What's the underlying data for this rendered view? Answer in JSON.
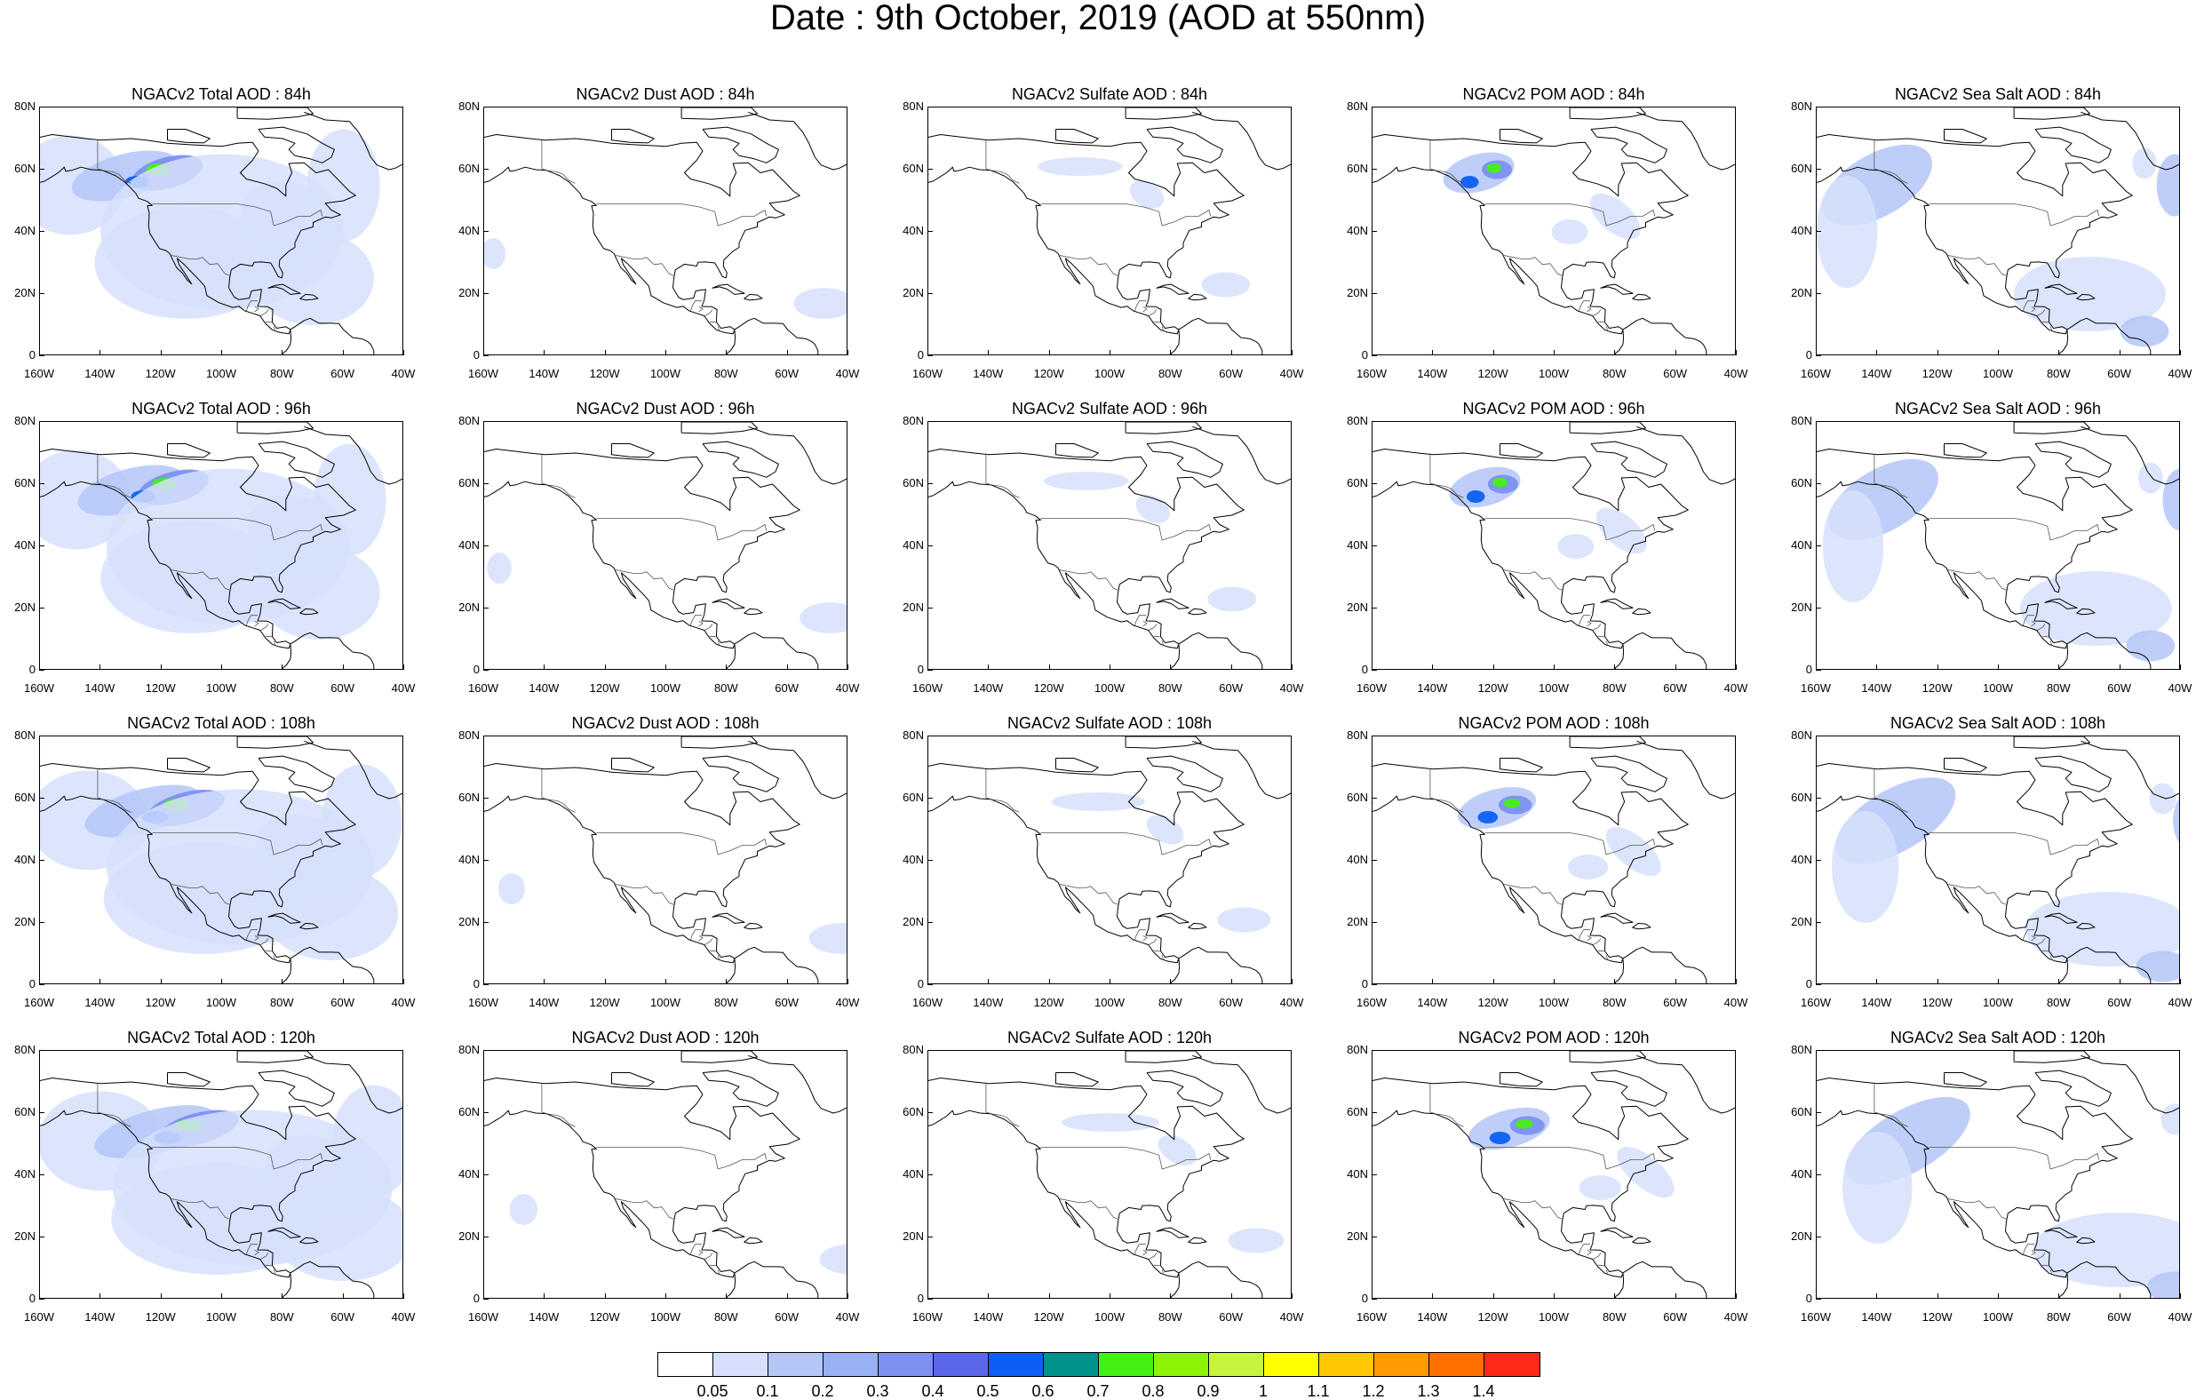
{
  "title": "Date : 9th October, 2019 (AOD at 550nm)",
  "axes": {
    "lat_labels": [
      "0",
      "20N",
      "40N",
      "60N",
      "80N"
    ],
    "lon_labels": [
      "160W",
      "140W",
      "120W",
      "100W",
      "80W",
      "60W",
      "40W"
    ],
    "lat_range": [
      0,
      80
    ],
    "lon_range": [
      -160,
      -40
    ]
  },
  "panels": [
    {
      "title": "NGACv2 Total AOD : 84h",
      "species": "total",
      "hour": 84
    },
    {
      "title": "NGACv2 Dust AOD : 84h",
      "species": "dust",
      "hour": 84
    },
    {
      "title": "NGACv2 Sulfate AOD : 84h",
      "species": "sulfate",
      "hour": 84
    },
    {
      "title": "NGACv2 POM AOD : 84h",
      "species": "pom",
      "hour": 84
    },
    {
      "title": "NGACv2 Sea Salt AOD : 84h",
      "species": "seasalt",
      "hour": 84
    },
    {
      "title": "NGACv2 Total AOD : 96h",
      "species": "total",
      "hour": 96
    },
    {
      "title": "NGACv2 Dust AOD : 96h",
      "species": "dust",
      "hour": 96
    },
    {
      "title": "NGACv2 Sulfate AOD : 96h",
      "species": "sulfate",
      "hour": 96
    },
    {
      "title": "NGACv2 POM AOD : 96h",
      "species": "pom",
      "hour": 96
    },
    {
      "title": "NGACv2 Sea Salt AOD : 96h",
      "species": "seasalt",
      "hour": 96
    },
    {
      "title": "NGACv2 Total AOD : 108h",
      "species": "total",
      "hour": 108
    },
    {
      "title": "NGACv2 Dust AOD : 108h",
      "species": "dust",
      "hour": 108
    },
    {
      "title": "NGACv2 Sulfate AOD : 108h",
      "species": "sulfate",
      "hour": 108
    },
    {
      "title": "NGACv2 POM AOD : 108h",
      "species": "pom",
      "hour": 108
    },
    {
      "title": "NGACv2 Sea Salt AOD : 108h",
      "species": "seasalt",
      "hour": 108
    },
    {
      "title": "NGACv2 Total AOD : 120h",
      "species": "total",
      "hour": 120
    },
    {
      "title": "NGACv2 Dust AOD : 120h",
      "species": "dust",
      "hour": 120
    },
    {
      "title": "NGACv2 Sulfate AOD : 120h",
      "species": "sulfate",
      "hour": 120
    },
    {
      "title": "NGACv2 POM AOD : 120h",
      "species": "pom",
      "hour": 120
    },
    {
      "title": "NGACv2 Sea Salt  AOD : 120h",
      "species": "seasalt",
      "hour": 120
    }
  ],
  "colorbar": {
    "labels": [
      "0.05",
      "0.1",
      "0.2",
      "0.3",
      "0.4",
      "0.5",
      "0.6",
      "0.7",
      "0.8",
      "0.9",
      "1",
      "1.1",
      "1.2",
      "1.3",
      "1.4"
    ],
    "colors": [
      "#ffffff",
      "#d6e0fc",
      "#b4c6f8",
      "#98b0f6",
      "#7c90f0",
      "#5c66e8",
      "#0c5ff4",
      "#00928c",
      "#45f015",
      "#8ef207",
      "#c5f53e",
      "#ffff00",
      "#ffc800",
      "#ff9b00",
      "#ff7000",
      "#ff2a18"
    ]
  }
}
